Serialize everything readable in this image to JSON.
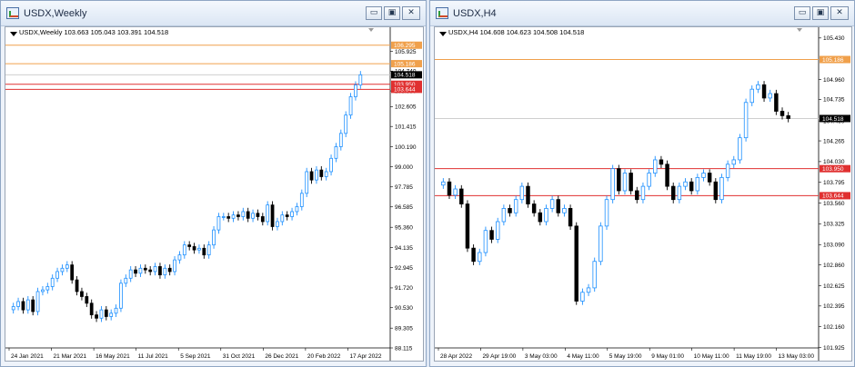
{
  "windows": [
    {
      "title": "USDX,Weekly",
      "header": "USDX,Weekly  103.663 105.043 103.391 104.518",
      "buttons": {
        "minimize": "▭",
        "restore": "▣",
        "close": "✕"
      },
      "colors": {
        "bull": "#1e90ff",
        "bear": "#000000",
        "resistance": "#f0a04b",
        "support": "#e03030",
        "current": "#000000"
      },
      "chart_data": {
        "type": "candlestick",
        "symbol": "USDX",
        "timeframe": "Weekly",
        "ylim": [
          88.115,
          107.1
        ],
        "yticks": [
          "105.925",
          "104.740",
          "103.550",
          "102.605",
          "101.415",
          "100.190",
          "99.000",
          "97.785",
          "96.585",
          "95.360",
          "94.135",
          "92.945",
          "91.720",
          "90.530",
          "89.305",
          "88.115"
        ],
        "xticks": [
          "24 Jan 2021",
          "21 Mar 2021",
          "16 May 2021",
          "11 Jul 2021",
          "5 Sep 2021",
          "31 Oct 2021",
          "26 Dec 2021",
          "20 Feb 2022",
          "17 Apr 2022"
        ],
        "levels": [
          {
            "value": 106.295,
            "label": "106.295",
            "kind": "resistance"
          },
          {
            "value": 105.186,
            "label": "105.186",
            "kind": "resistance"
          },
          {
            "value": 103.95,
            "label": "103.950",
            "kind": "support"
          },
          {
            "value": 103.644,
            "label": "103.644",
            "kind": "support"
          }
        ],
        "current": {
          "value": 104.518,
          "label": "104.518"
        },
        "close": [
          90.6,
          90.9,
          90.4,
          91.0,
          90.3,
          91.5,
          91.6,
          91.8,
          92.3,
          92.7,
          92.9,
          93.1,
          92.2,
          91.5,
          91.2,
          90.8,
          90.1,
          89.9,
          90.4,
          90.0,
          90.2,
          90.5,
          92.0,
          92.3,
          92.8,
          92.6,
          92.9,
          92.8,
          92.7,
          93.0,
          92.5,
          92.9,
          92.7,
          93.4,
          93.7,
          94.3,
          94.2,
          94.0,
          94.1,
          93.7,
          94.3,
          95.2,
          96.0,
          96.0,
          95.9,
          96.1,
          96.0,
          96.3,
          95.9,
          96.2,
          96.0,
          95.7,
          96.7,
          95.4,
          95.7,
          96.1,
          96.0,
          96.3,
          96.6,
          97.4,
          98.7,
          98.2,
          98.8,
          98.4,
          98.7,
          99.5,
          100.2,
          101.0,
          102.1,
          103.2,
          103.9,
          104.518
        ]
      }
    },
    {
      "title": "USDX,H4",
      "header": "USDX,H4  104.608 104.623 104.508 104.518",
      "buttons": {
        "minimize": "▭",
        "restore": "▣",
        "close": "✕"
      },
      "colors": {
        "bull": "#1e90ff",
        "bear": "#000000",
        "resistance": "#f0a04b",
        "support": "#e03030",
        "current": "#000000"
      },
      "chart_data": {
        "type": "candlestick",
        "symbol": "USDX",
        "timeframe": "H4",
        "ylim": [
          101.92,
          105.5
        ],
        "yticks": [
          "105.430",
          "104.960",
          "104.735",
          "104.490",
          "104.265",
          "104.030",
          "103.795",
          "103.560",
          "103.325",
          "103.090",
          "102.860",
          "102.625",
          "102.395",
          "102.160",
          "101.925"
        ],
        "xticks": [
          "28 Apr 2022",
          "29 Apr 19:00",
          "3 May 03:00",
          "4 May 11:00",
          "5 May 19:00",
          "9 May 01:00",
          "10 May 11:00",
          "11 May 19:00",
          "13 May 03:00"
        ],
        "levels": [
          {
            "value": 105.186,
            "label": "105.186",
            "kind": "resistance"
          },
          {
            "value": 103.95,
            "label": "103.950",
            "kind": "support"
          },
          {
            "value": 103.644,
            "label": "103.644",
            "kind": "support"
          }
        ],
        "current": {
          "value": 104.518,
          "label": "104.518"
        },
        "close": [
          103.8,
          103.65,
          103.72,
          103.55,
          103.05,
          102.9,
          103.0,
          103.25,
          103.15,
          103.35,
          103.5,
          103.45,
          103.6,
          103.75,
          103.55,
          103.45,
          103.35,
          103.5,
          103.6,
          103.45,
          103.5,
          103.3,
          102.45,
          102.55,
          102.6,
          102.9,
          103.3,
          103.6,
          103.95,
          103.7,
          103.9,
          103.7,
          103.6,
          103.75,
          103.9,
          104.05,
          104.0,
          103.75,
          103.6,
          103.75,
          103.8,
          103.7,
          103.85,
          103.9,
          103.8,
          103.6,
          103.85,
          104.0,
          104.05,
          104.3,
          104.7,
          104.85,
          104.9,
          104.75,
          104.8,
          104.6,
          104.55,
          104.518
        ]
      }
    }
  ]
}
